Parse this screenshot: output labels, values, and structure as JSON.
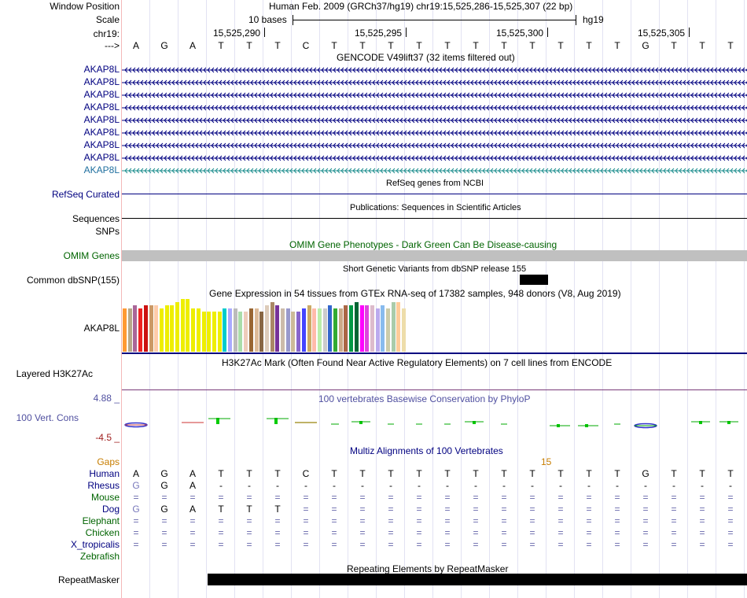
{
  "labels": {
    "window_position": "Window Position",
    "scale": "Scale",
    "chrom": "chr19:",
    "strand": "--->",
    "genes": [
      "AKAP8L",
      "AKAP8L",
      "AKAP8L",
      "AKAP8L",
      "AKAP8L",
      "AKAP8L",
      "AKAP8L",
      "AKAP8L",
      "AKAP8L"
    ],
    "refseq": "RefSeq Curated",
    "sequences": "Sequences",
    "snps": "SNPs",
    "omim": "OMIM Genes",
    "common_snp": "Common dbSNP(155)",
    "gtex_gene": "AKAP8L",
    "h3k27ac": "Layered H3K27Ac",
    "cons_max": "4.88 _",
    "cons": "100 Vert. Cons",
    "cons_min": "-4.5 _",
    "gaps": "Gaps",
    "species": [
      "Human",
      "Rhesus",
      "Mouse",
      "Dog",
      "Elephant",
      "Chicken",
      "X_tropicalis",
      "Zebrafish"
    ],
    "repeatmasker": "RepeatMasker"
  },
  "header": {
    "assembly": "Human Feb. 2009 (GRCh37/hg19)   chr19:15,525,286-15,525,307 (22 bp)",
    "scale_text": "10 bases",
    "scale_db": "hg19",
    "positions": [
      "15,525,290",
      "15,525,295",
      "15,525,300",
      "15,525,305"
    ]
  },
  "sequence": [
    "A",
    "G",
    "A",
    "T",
    "T",
    "T",
    "C",
    "T",
    "T",
    "T",
    "T",
    "T",
    "T",
    "T",
    "T",
    "T",
    "T",
    "T",
    "G",
    "T",
    "T",
    "T"
  ],
  "track_titles": {
    "gencode": "GENCODE V49lift37 (32 items filtered out)",
    "refseq": "RefSeq genes from NCBI",
    "publications": "Publications: Sequences in Scientific Articles",
    "omim": "OMIM Gene Phenotypes - Dark Green Can Be Disease-causing",
    "dbsnp": "Short Genetic Variants from dbSNP release 155",
    "gtex": "Gene Expression in 54 tissues from GTEx RNA-seq of 17382 samples, 948 donors (V8, Aug 2019)",
    "h3k27ac": "H3K27Ac Mark (Often Found Near Active Regulatory Elements) on 7 cell lines from ENCODE",
    "phylop": "100 vertebrates Basewise Conservation by PhyloP",
    "multiz": "Multiz Alignments of 100 Vertebrates",
    "repeatmasker": "Repeating Elements by RepeatMasker"
  },
  "gap_number": "15",
  "alignment": [
    [
      "A",
      "G",
      "A",
      "T",
      "T",
      "T",
      "C",
      "T",
      "T",
      "T",
      "T",
      "T",
      "T",
      "T",
      "T",
      "T",
      "T",
      "T",
      "G",
      "T",
      "T",
      "T"
    ],
    [
      "G",
      "G",
      "A",
      "-",
      "-",
      "-",
      "-",
      "-",
      "-",
      "-",
      "-",
      "-",
      "-",
      "-",
      "-",
      "-",
      "-",
      "-",
      "-",
      "-",
      "-",
      "-"
    ],
    [
      "=",
      "=",
      "=",
      "=",
      "=",
      "=",
      "=",
      "=",
      "=",
      "=",
      "=",
      "=",
      "=",
      "=",
      "=",
      "=",
      "=",
      "=",
      "=",
      "=",
      "=",
      "="
    ],
    [
      "G",
      "G",
      "A",
      "T",
      "T",
      "T",
      "=",
      "=",
      "=",
      "=",
      "=",
      "=",
      "=",
      "=",
      "=",
      "=",
      "=",
      "=",
      "=",
      "=",
      "=",
      "="
    ],
    [
      "=",
      "=",
      "=",
      "=",
      "=",
      "=",
      "=",
      "=",
      "=",
      "=",
      "=",
      "=",
      "=",
      "=",
      "=",
      "=",
      "=",
      "=",
      "=",
      "=",
      "=",
      "="
    ],
    [
      "=",
      "=",
      "=",
      "=",
      "=",
      "=",
      "=",
      "=",
      "=",
      "=",
      "=",
      "=",
      "=",
      "=",
      "=",
      "=",
      "=",
      "=",
      "=",
      "=",
      "=",
      "="
    ],
    [
      "=",
      "=",
      "=",
      "=",
      "=",
      "=",
      "=",
      "=",
      "=",
      "=",
      "=",
      "=",
      "=",
      "=",
      "=",
      "=",
      "=",
      "=",
      "=",
      "=",
      "=",
      "="
    ],
    [
      "",
      "",
      "",
      "",
      "",
      "",
      "",
      "",
      "",
      "",
      "",
      "",
      "",
      "",
      "",
      "",
      "",
      "",
      "",
      "",
      "",
      ""
    ]
  ],
  "gtex_values": [
    14,
    14,
    15,
    14,
    15,
    15,
    15,
    14,
    15,
    15,
    16,
    17,
    17,
    14,
    14,
    13,
    13,
    13,
    13,
    14,
    14,
    14,
    13,
    13,
    14,
    14,
    13,
    15,
    16,
    15,
    14,
    14,
    13,
    13,
    14,
    15,
    14,
    14,
    14,
    15,
    14,
    14,
    15,
    15,
    16,
    15,
    15,
    15,
    14,
    15,
    14,
    16,
    16,
    14
  ],
  "gtex_colors": [
    "#ff9933",
    "#b8a88a",
    "#aa6699",
    "#ee2222",
    "#cc1111",
    "#cc9966",
    "#ffccaa",
    "#eeee00",
    "#eeee00",
    "#eeee00",
    "#eeee00",
    "#eeee00",
    "#eeee00",
    "#eeee00",
    "#eeee00",
    "#eeee00",
    "#eeee00",
    "#eeee00",
    "#eeee00",
    "#00cccc",
    "#aaaaff",
    "#bbbbbb",
    "#aaddaa",
    "#eeccbb",
    "#996633",
    "#ddbb99",
    "#886644",
    "#ddccbb",
    "#aa8866",
    "#773399",
    "#ccbbaa",
    "#9999cc",
    "#ccbb99",
    "#8866cc",
    "#4444ff",
    "#ccaa66",
    "#ffbbaa",
    "#bbeeaa",
    "#cccccc",
    "#3366cc",
    "#33aa33",
    "#ccaa88",
    "#aa6644",
    "#009944",
    "#006633",
    "#ff00ff",
    "#dd44dd",
    "#ddbbcc",
    "#bbaaee",
    "#88bbee",
    "#ccccaa",
    "#aaccaa",
    "#ffcc99",
    "#eeddaa"
  ]
}
